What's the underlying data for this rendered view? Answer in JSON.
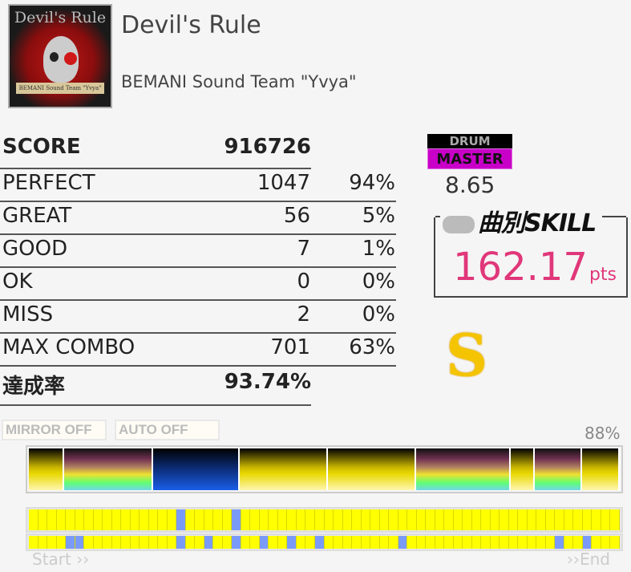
{
  "song": {
    "title": "Devil's Rule",
    "artist": "BEMANI Sound Team \"Yvya\"",
    "jacket_text": "Devil's Rule",
    "jacket_subtext": "BEMANI Sound Team \"Yvya\""
  },
  "score": {
    "label": "SCORE",
    "value": "916726"
  },
  "judgements": [
    {
      "label": "PERFECT",
      "count": "1047",
      "percent": "94%"
    },
    {
      "label": "GREAT",
      "count": "56",
      "percent": "5%"
    },
    {
      "label": "GOOD",
      "count": "7",
      "percent": "1%"
    },
    {
      "label": "OK",
      "count": "0",
      "percent": "0%"
    },
    {
      "label": "MISS",
      "count": "2",
      "percent": "0%"
    },
    {
      "label": "MAX COMBO",
      "count": "701",
      "percent": "63%"
    }
  ],
  "achievement": {
    "label": "達成率",
    "value": "93.74%"
  },
  "difficulty": {
    "instrument": "DRUM",
    "level_name": "MASTER",
    "level": "8.65",
    "color": "#c800c8"
  },
  "skill": {
    "label": "曲別SKILL",
    "value": "162.17",
    "unit": "pts",
    "color": "#e0377a"
  },
  "rank": "S",
  "options": {
    "mirror": "MIRROR OFF",
    "auto": "AUTO OFF"
  },
  "progress": {
    "percent": "88%",
    "start": "Start ››",
    "end": "››End"
  },
  "sections": [
    "yellow",
    "rainbow",
    "blue",
    "yellow",
    "yellow",
    "rainbow",
    "yellow",
    "rainbow",
    "yellow"
  ],
  "section_weights": [
    43,
    112,
    110,
    111,
    111,
    119,
    29,
    59,
    46
  ],
  "timeline_cells": 64,
  "timeline_row1_blue": [
    16,
    22
  ],
  "timeline_row2_blue": [
    4,
    5,
    16,
    19,
    22,
    25,
    28,
    31,
    40,
    57,
    60
  ]
}
